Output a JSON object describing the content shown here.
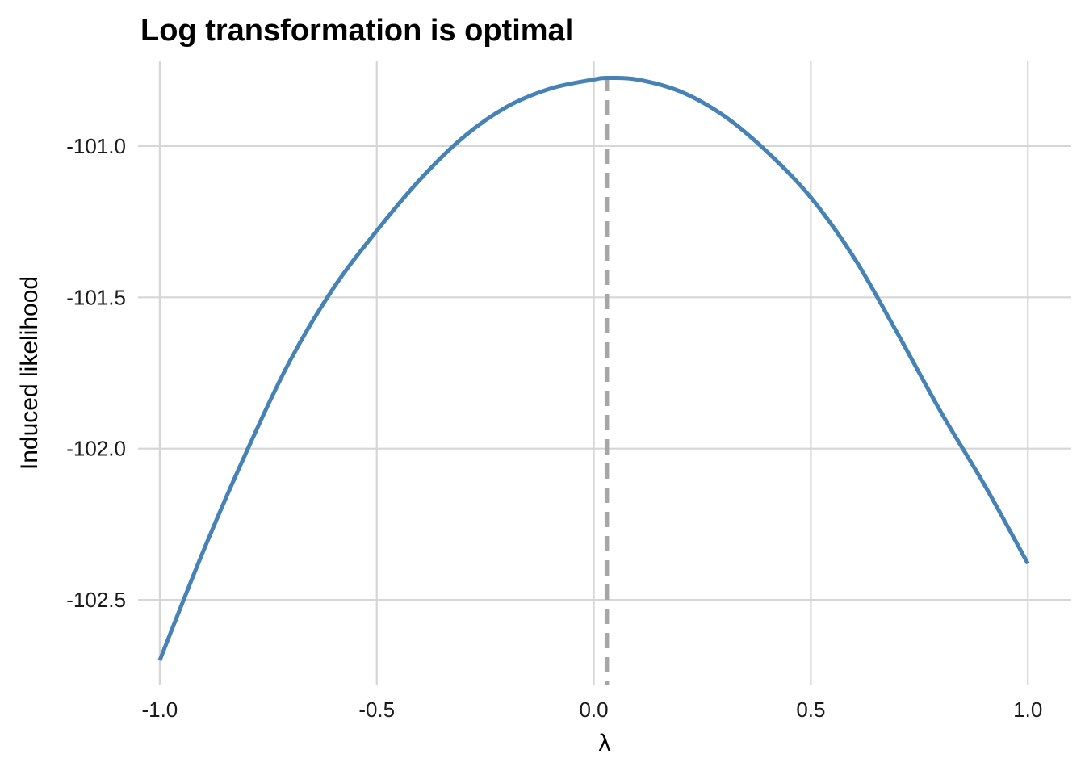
{
  "chart_data": {
    "type": "line",
    "title": "Log transformation is optimal",
    "xlabel": "λ",
    "ylabel": "Induced likelihood",
    "xlim": [
      -1.05,
      1.1
    ],
    "ylim": [
      -102.78,
      -100.72
    ],
    "x_ticks": [
      -1.0,
      -0.5,
      0.0,
      0.5,
      1.0
    ],
    "x_tick_labels": [
      "-1.0",
      "-0.5",
      "0.0",
      "0.5",
      "1.0"
    ],
    "y_ticks": [
      -101.0,
      -101.5,
      -102.0,
      -102.5
    ],
    "y_tick_labels": [
      "-101.0",
      "-101.5",
      "-102.0",
      "-102.5"
    ],
    "grid": true,
    "legend": "none",
    "series": [
      {
        "x": [
          -1.0,
          -0.9,
          -0.8,
          -0.7,
          -0.6,
          -0.5,
          -0.4,
          -0.3,
          -0.2,
          -0.1,
          0.0,
          0.03,
          0.1,
          0.2,
          0.3,
          0.4,
          0.5,
          0.6,
          0.7,
          0.8,
          0.9,
          1.0
        ],
        "y": [
          -102.7,
          -102.34,
          -102.01,
          -101.71,
          -101.47,
          -101.28,
          -101.11,
          -100.97,
          -100.87,
          -100.81,
          -100.78,
          -100.775,
          -100.78,
          -100.82,
          -100.9,
          -101.02,
          -101.17,
          -101.37,
          -101.62,
          -101.88,
          -102.12,
          -102.38
        ],
        "color": "#4682b4"
      }
    ],
    "vline": {
      "x": 0.03,
      "color": "#a6a6a6",
      "style": "dashed"
    }
  }
}
